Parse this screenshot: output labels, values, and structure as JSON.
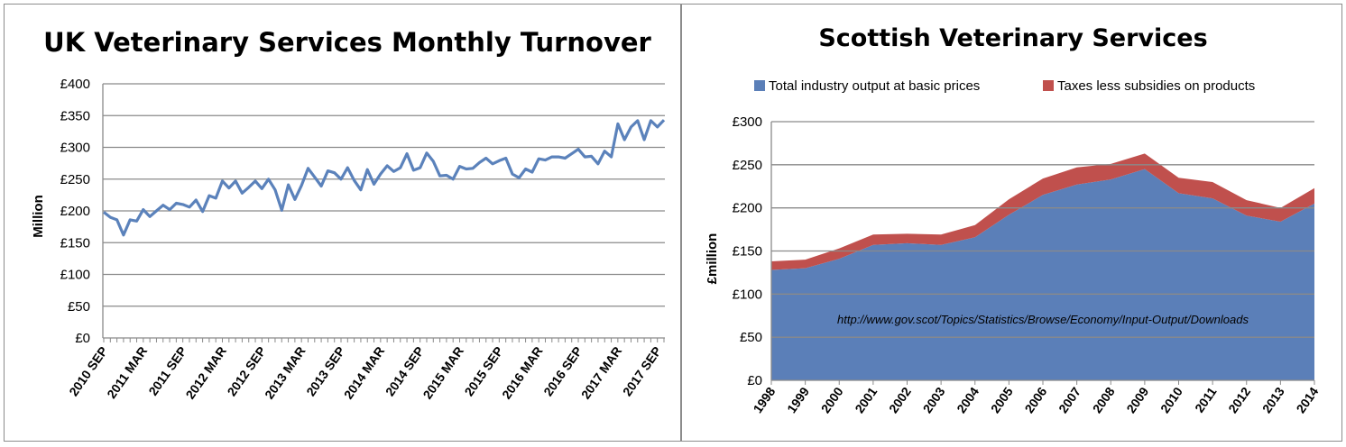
{
  "chart_data": [
    {
      "type": "line",
      "title": "UK Veterinary Services Monthly Turnover",
      "ylabel": "Million",
      "xlabel": "",
      "ylim": [
        0,
        400
      ],
      "yticks": [
        "£0",
        "£50",
        "£100",
        "£150",
        "£200",
        "£250",
        "£300",
        "£350",
        "£400"
      ],
      "grid": true,
      "x_tick_labels": [
        "2010 SEP",
        "2011 MAR",
        "2011 SEP",
        "2012 MAR",
        "2012 SEP",
        "2013 MAR",
        "2013 SEP",
        "2014 MAR",
        "2014 SEP",
        "2015 MAR",
        "2015 SEP",
        "2016 MAR",
        "2016 SEP",
        "2017 MAR",
        "2017 SEP"
      ],
      "x_start": "2010 SEP",
      "series": [
        {
          "color": "#5b82bb",
          "values": [
            198,
            190,
            186,
            162,
            186,
            184,
            202,
            191,
            200,
            209,
            202,
            212,
            210,
            206,
            217,
            199,
            224,
            220,
            247,
            236,
            247,
            228,
            237,
            247,
            235,
            250,
            233,
            201,
            241,
            218,
            240,
            267,
            253,
            239,
            263,
            260,
            250,
            268,
            248,
            233,
            265,
            242,
            258,
            271,
            262,
            268,
            290,
            264,
            268,
            291,
            278,
            255,
            256,
            250,
            270,
            266,
            267,
            276,
            283,
            274,
            279,
            283,
            258,
            252,
            266,
            261,
            282,
            280,
            285,
            285,
            283,
            290,
            297,
            285,
            286,
            274,
            294,
            285,
            337,
            312,
            332,
            342,
            312,
            342,
            332,
            343
          ]
        }
      ]
    },
    {
      "type": "area",
      "stacked": true,
      "title": "Scottish Veterinary Services",
      "ylabel": "£million",
      "xlabel": "",
      "ylim": [
        0,
        300
      ],
      "yticks": [
        "£0",
        "£50",
        "£100",
        "£150",
        "£200",
        "£250",
        "£300"
      ],
      "grid": true,
      "legend_position": "top",
      "categories": [
        "1998",
        "1999",
        "2000",
        "2001",
        "2002",
        "2003",
        "2004",
        "2005",
        "2006",
        "2007",
        "2008",
        "2009",
        "2010",
        "2011",
        "2012",
        "2013",
        "2014"
      ],
      "series": [
        {
          "name": "Total industry output at basic prices",
          "color": "#5b7fb8",
          "values": [
            128,
            130,
            141,
            157,
            159,
            157,
            166,
            192,
            215,
            227,
            233,
            245,
            217,
            211,
            191,
            184,
            205
          ]
        },
        {
          "name": "Taxes less subsidies on products",
          "color": "#c0504d",
          "values": [
            10,
            10,
            12,
            12,
            11,
            12,
            14,
            18,
            19,
            20,
            18,
            18,
            18,
            19,
            18,
            16,
            18
          ]
        }
      ],
      "annotation": "http://www.gov.scot/Topics/Statistics/Browse/Economy/Input-Output/Downloads"
    }
  ]
}
